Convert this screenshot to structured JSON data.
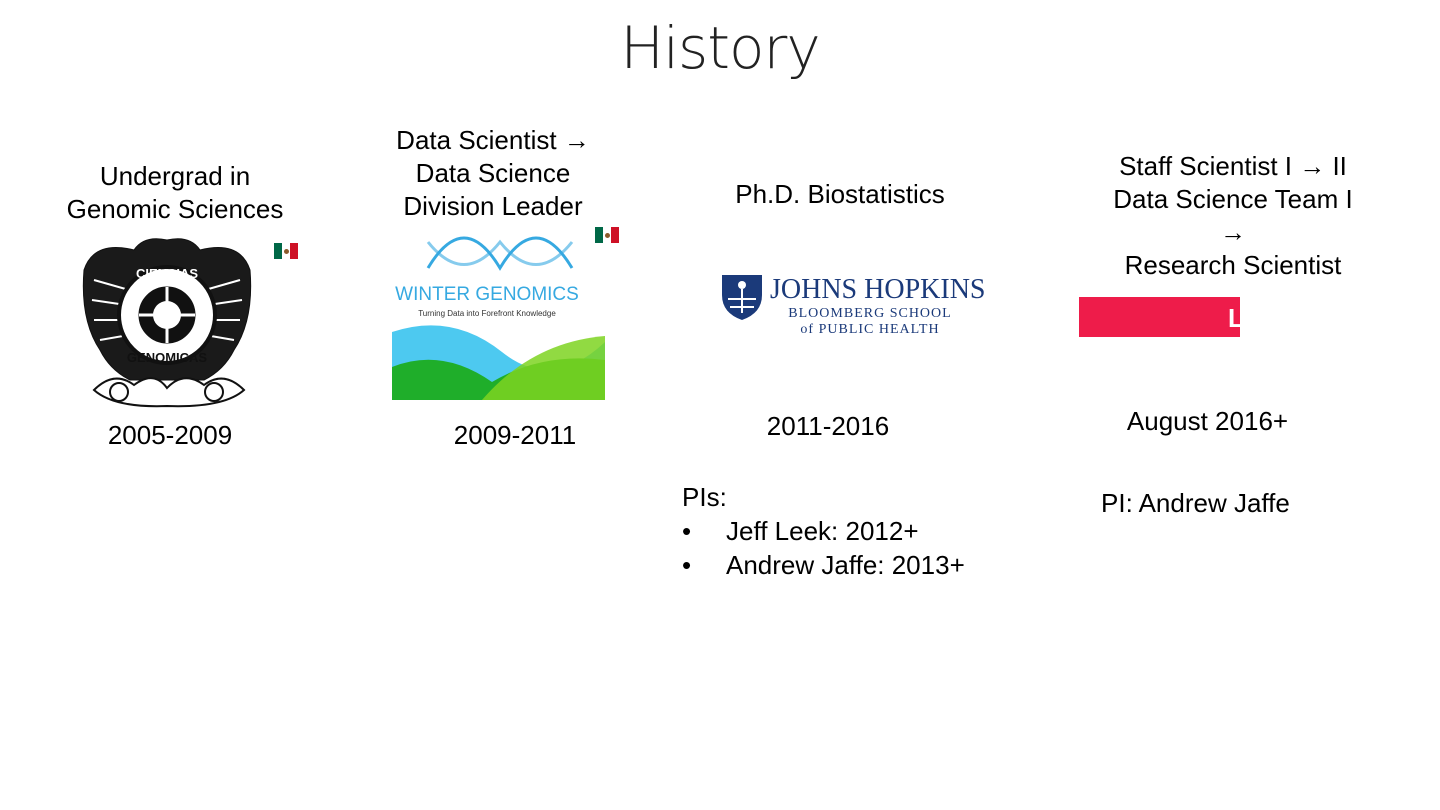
{
  "slide": {
    "title": "History"
  },
  "columns": [
    {
      "heading_lines": [
        "Undergrad in",
        "Genomic Sciences"
      ],
      "years": "2005-2009"
    },
    {
      "heading_lines": [
        "Data Scientist →",
        "Data Science",
        "Division Leader"
      ],
      "years": "2009-2011",
      "logo": {
        "name": "WINTER GENOMICS",
        "tagline": "Turning Data into Forefront Knowledge"
      }
    },
    {
      "heading_lines": [
        "Ph.D. Biostatistics"
      ],
      "years": "2011-2016",
      "logo": {
        "line1": "JOHNS HOPKINS",
        "line2": "BLOOMBERG SCHOOL",
        "line3": "of PUBLIC HEALTH"
      },
      "pis_label": "PIs:",
      "pis": [
        "Jeff Leek: 2012+",
        "Andrew Jaffe: 2013+"
      ]
    },
    {
      "heading_lines": [
        "Staff Scientist I → II",
        "Data Science Team I",
        "→",
        "Research Scientist"
      ],
      "years": "August 2016+",
      "logo": {
        "text": "LIBD"
      },
      "pi": "PI: Andrew Jaffe"
    }
  ],
  "bullet_char": "•",
  "colors": {
    "libd_red": "#ee1c4a",
    "jhu_blue": "#1b3a7a",
    "winter_blue": "#36a9e1",
    "flag_green": "#006847",
    "flag_red": "#ce1126"
  },
  "icons": [
    "unam-seal-icon",
    "mexico-flag-icon",
    "winter-genomics-logo",
    "jhu-shield-icon",
    "libd-logo"
  ]
}
